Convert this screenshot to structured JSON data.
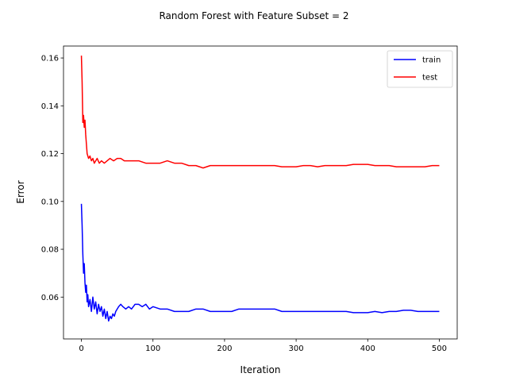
{
  "chart_data": {
    "type": "line",
    "title": "Random Forest with Feature Subset = 2",
    "xlabel": "Iteration",
    "ylabel": "Error",
    "xlim": [
      -25,
      525
    ],
    "ylim": [
      0.0425,
      0.165
    ],
    "xticks": [
      0,
      100,
      200,
      300,
      400,
      500
    ],
    "yticks": [
      0.06,
      0.08,
      0.1,
      0.12,
      0.14,
      0.16
    ],
    "ytick_labels": [
      "0.06",
      "0.08",
      "0.10",
      "0.12",
      "0.14",
      "0.16"
    ],
    "grid": false,
    "legend_position": "upper right",
    "series": [
      {
        "name": "train",
        "color": "#0000ff",
        "points": [
          [
            0,
            0.099
          ],
          [
            1,
            0.09
          ],
          [
            2,
            0.078
          ],
          [
            3,
            0.07
          ],
          [
            4,
            0.074
          ],
          [
            5,
            0.066
          ],
          [
            6,
            0.062
          ],
          [
            7,
            0.065
          ],
          [
            8,
            0.058
          ],
          [
            9,
            0.061
          ],
          [
            10,
            0.056
          ],
          [
            12,
            0.059
          ],
          [
            14,
            0.054
          ],
          [
            16,
            0.06
          ],
          [
            18,
            0.055
          ],
          [
            20,
            0.058
          ],
          [
            22,
            0.053
          ],
          [
            24,
            0.057
          ],
          [
            26,
            0.054
          ],
          [
            28,
            0.056
          ],
          [
            30,
            0.052
          ],
          [
            32,
            0.055
          ],
          [
            34,
            0.051
          ],
          [
            36,
            0.054
          ],
          [
            38,
            0.05
          ],
          [
            40,
            0.052
          ],
          [
            42,
            0.051
          ],
          [
            44,
            0.053
          ],
          [
            46,
            0.052
          ],
          [
            48,
            0.054
          ],
          [
            50,
            0.055
          ],
          [
            52,
            0.056
          ],
          [
            55,
            0.057
          ],
          [
            58,
            0.056
          ],
          [
            62,
            0.055
          ],
          [
            66,
            0.056
          ],
          [
            70,
            0.055
          ],
          [
            75,
            0.057
          ],
          [
            80,
            0.057
          ],
          [
            85,
            0.056
          ],
          [
            90,
            0.057
          ],
          [
            95,
            0.055
          ],
          [
            100,
            0.056
          ],
          [
            110,
            0.055
          ],
          [
            120,
            0.055
          ],
          [
            130,
            0.054
          ],
          [
            140,
            0.054
          ],
          [
            150,
            0.054
          ],
          [
            160,
            0.055
          ],
          [
            170,
            0.055
          ],
          [
            180,
            0.054
          ],
          [
            190,
            0.054
          ],
          [
            200,
            0.054
          ],
          [
            210,
            0.054
          ],
          [
            220,
            0.055
          ],
          [
            230,
            0.055
          ],
          [
            240,
            0.055
          ],
          [
            250,
            0.055
          ],
          [
            260,
            0.055
          ],
          [
            270,
            0.055
          ],
          [
            280,
            0.054
          ],
          [
            290,
            0.054
          ],
          [
            300,
            0.054
          ],
          [
            310,
            0.054
          ],
          [
            320,
            0.054
          ],
          [
            330,
            0.054
          ],
          [
            340,
            0.054
          ],
          [
            350,
            0.054
          ],
          [
            360,
            0.054
          ],
          [
            370,
            0.054
          ],
          [
            380,
            0.0535
          ],
          [
            390,
            0.0535
          ],
          [
            400,
            0.0535
          ],
          [
            410,
            0.054
          ],
          [
            420,
            0.0535
          ],
          [
            430,
            0.054
          ],
          [
            440,
            0.054
          ],
          [
            450,
            0.0545
          ],
          [
            460,
            0.0545
          ],
          [
            470,
            0.054
          ],
          [
            480,
            0.054
          ],
          [
            490,
            0.054
          ],
          [
            500,
            0.054
          ]
        ]
      },
      {
        "name": "test",
        "color": "#ff0000",
        "points": [
          [
            0,
            0.161
          ],
          [
            1,
            0.15
          ],
          [
            2,
            0.133
          ],
          [
            3,
            0.136
          ],
          [
            4,
            0.131
          ],
          [
            5,
            0.134
          ],
          [
            6,
            0.128
          ],
          [
            7,
            0.124
          ],
          [
            8,
            0.12
          ],
          [
            10,
            0.118
          ],
          [
            12,
            0.119
          ],
          [
            14,
            0.117
          ],
          [
            16,
            0.118
          ],
          [
            18,
            0.116
          ],
          [
            20,
            0.117
          ],
          [
            22,
            0.118
          ],
          [
            25,
            0.116
          ],
          [
            28,
            0.117
          ],
          [
            32,
            0.116
          ],
          [
            36,
            0.117
          ],
          [
            40,
            0.118
          ],
          [
            45,
            0.117
          ],
          [
            50,
            0.118
          ],
          [
            55,
            0.118
          ],
          [
            60,
            0.117
          ],
          [
            70,
            0.117
          ],
          [
            80,
            0.117
          ],
          [
            90,
            0.116
          ],
          [
            100,
            0.116
          ],
          [
            110,
            0.116
          ],
          [
            120,
            0.117
          ],
          [
            130,
            0.116
          ],
          [
            140,
            0.116
          ],
          [
            150,
            0.115
          ],
          [
            160,
            0.115
          ],
          [
            170,
            0.114
          ],
          [
            180,
            0.115
          ],
          [
            190,
            0.115
          ],
          [
            200,
            0.115
          ],
          [
            210,
            0.115
          ],
          [
            220,
            0.115
          ],
          [
            230,
            0.115
          ],
          [
            240,
            0.115
          ],
          [
            250,
            0.115
          ],
          [
            260,
            0.115
          ],
          [
            270,
            0.115
          ],
          [
            280,
            0.1145
          ],
          [
            290,
            0.1145
          ],
          [
            300,
            0.1145
          ],
          [
            310,
            0.115
          ],
          [
            320,
            0.115
          ],
          [
            330,
            0.1145
          ],
          [
            340,
            0.115
          ],
          [
            350,
            0.115
          ],
          [
            360,
            0.115
          ],
          [
            370,
            0.115
          ],
          [
            380,
            0.1155
          ],
          [
            390,
            0.1155
          ],
          [
            400,
            0.1155
          ],
          [
            410,
            0.115
          ],
          [
            420,
            0.115
          ],
          [
            430,
            0.115
          ],
          [
            440,
            0.1145
          ],
          [
            450,
            0.1145
          ],
          [
            460,
            0.1145
          ],
          [
            470,
            0.1145
          ],
          [
            480,
            0.1145
          ],
          [
            490,
            0.115
          ],
          [
            500,
            0.115
          ]
        ]
      }
    ]
  }
}
